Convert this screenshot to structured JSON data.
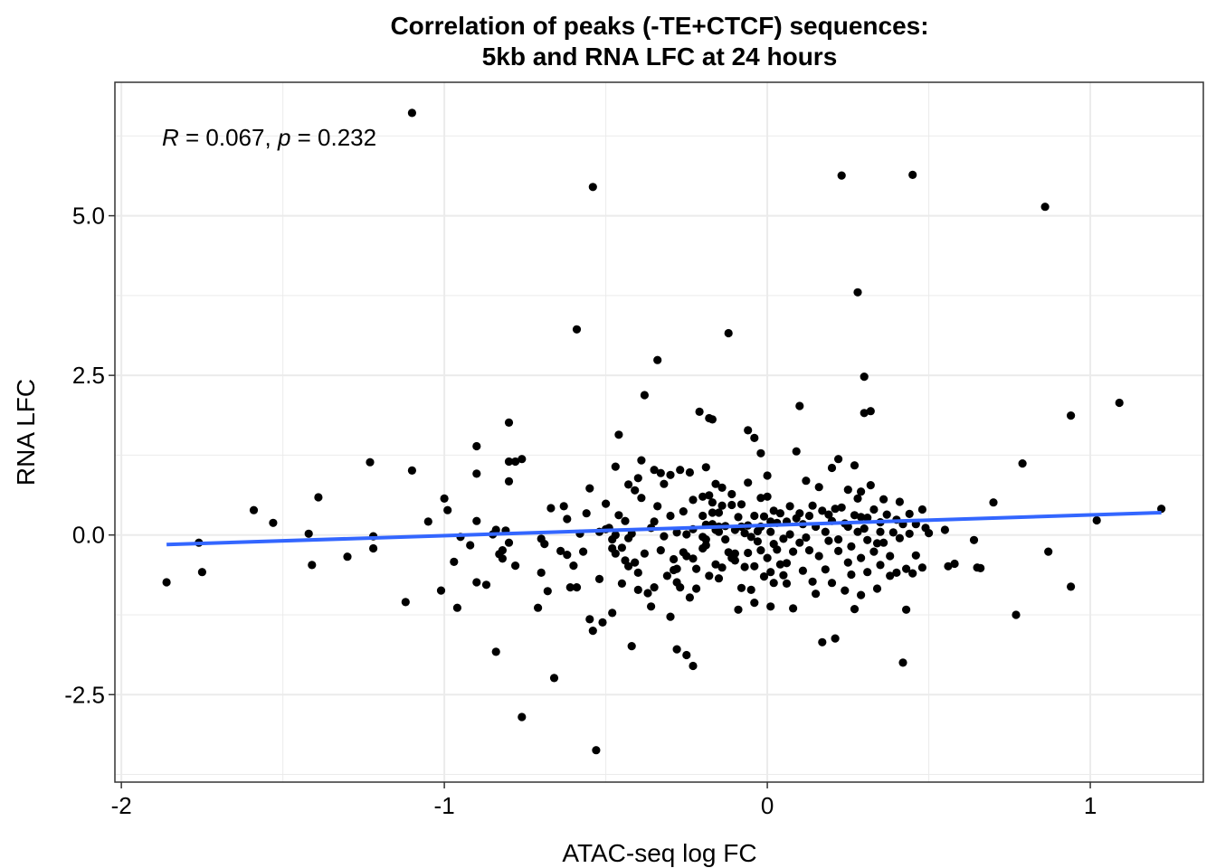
{
  "chart_data": {
    "type": "scatter",
    "title_lines": [
      "Correlation of peaks (-TE+CTCF) sequences:",
      "5kb and RNA LFC at 24 hours"
    ],
    "xlabel": "ATAC-seq log FC",
    "ylabel": "RNA LFC",
    "xlim": [
      -2.02,
      1.35
    ],
    "ylim": [
      -3.87,
      7.09
    ],
    "x_ticks": [
      -2,
      -1,
      0,
      1
    ],
    "x_tick_labels": [
      "-2",
      "-1",
      "0",
      "1"
    ],
    "y_ticks": [
      -2.5,
      0,
      2.5,
      5
    ],
    "y_tick_labels": [
      "-2.5",
      "0.0",
      "2.5",
      "5.0"
    ],
    "grid": true,
    "legend": "none",
    "colors": {
      "points": "#000000",
      "fit_line": "#3366FF",
      "grid": "#EBEBEB",
      "border": "#333333"
    },
    "annotation": {
      "r_label": "R",
      "r_value": " = 0.067, ",
      "p_label": "p",
      "p_value": " = 0.232"
    },
    "fit_line": {
      "x": [
        -1.86,
        1.22
      ],
      "y": [
        -0.15,
        0.35
      ]
    },
    "points": [
      [
        -1.86,
        -0.74
      ],
      [
        -1.76,
        -0.12
      ],
      [
        -1.75,
        -0.58
      ],
      [
        -1.59,
        0.39
      ],
      [
        -1.53,
        0.19
      ],
      [
        -1.42,
        0.02
      ],
      [
        -1.41,
        -0.47
      ],
      [
        -1.39,
        0.59
      ],
      [
        -1.3,
        -0.34
      ],
      [
        -1.23,
        1.14
      ],
      [
        -1.22,
        -0.02
      ],
      [
        -1.22,
        -0.21
      ],
      [
        -1.12,
        -1.05
      ],
      [
        -1.1,
        1.01
      ],
      [
        -1.1,
        6.61
      ],
      [
        -1.05,
        0.21
      ],
      [
        -1.01,
        -0.87
      ],
      [
        -1.0,
        0.57
      ],
      [
        -0.99,
        0.39
      ],
      [
        -0.97,
        -0.42
      ],
      [
        -0.96,
        -1.14
      ],
      [
        -0.95,
        -0.03
      ],
      [
        -0.92,
        -0.16
      ],
      [
        -0.9,
        0.96
      ],
      [
        -0.9,
        1.39
      ],
      [
        -0.9,
        -0.74
      ],
      [
        -0.9,
        0.22
      ],
      [
        -0.87,
        -0.78
      ],
      [
        -0.85,
        0.01
      ],
      [
        -0.84,
        -1.83
      ],
      [
        -0.84,
        0.08
      ],
      [
        -0.83,
        -0.3
      ],
      [
        -0.82,
        -0.24
      ],
      [
        -0.82,
        -0.37
      ],
      [
        -0.81,
        0.07
      ],
      [
        -0.8,
        -0.12
      ],
      [
        -0.8,
        1.76
      ],
      [
        -0.8,
        1.15
      ],
      [
        -0.8,
        0.84
      ],
      [
        -0.78,
        1.15
      ],
      [
        -0.78,
        -0.48
      ],
      [
        -0.76,
        1.19
      ],
      [
        -0.76,
        -2.85
      ],
      [
        -0.71,
        -1.14
      ],
      [
        -0.7,
        -0.06
      ],
      [
        -0.7,
        -0.59
      ],
      [
        -0.69,
        -0.14
      ],
      [
        -0.68,
        -0.88
      ],
      [
        -0.67,
        0.42
      ],
      [
        -0.66,
        -2.24
      ],
      [
        -0.64,
        -0.25
      ],
      [
        -0.63,
        0.45
      ],
      [
        -0.62,
        0.25
      ],
      [
        -0.62,
        -0.31
      ],
      [
        -0.61,
        -0.82
      ],
      [
        -0.6,
        -0.48
      ],
      [
        -0.59,
        -0.82
      ],
      [
        -0.59,
        3.22
      ],
      [
        -0.58,
        0.02
      ],
      [
        -0.57,
        -0.26
      ],
      [
        -0.56,
        0.34
      ],
      [
        -0.55,
        0.73
      ],
      [
        -0.55,
        -1.32
      ],
      [
        -0.54,
        -1.5
      ],
      [
        -0.54,
        5.45
      ],
      [
        -0.53,
        -3.37
      ],
      [
        -0.52,
        0.05
      ],
      [
        -0.52,
        -0.69
      ],
      [
        -0.51,
        -1.37
      ],
      [
        -0.5,
        0.49
      ],
      [
        -0.5,
        0.09
      ],
      [
        -0.49,
        0.11
      ],
      [
        -0.48,
        -0.07
      ],
      [
        -0.48,
        -0.21
      ],
      [
        -0.48,
        -1.22
      ],
      [
        -0.47,
        1.07
      ],
      [
        -0.47,
        0.0
      ],
      [
        -0.47,
        -0.29
      ],
      [
        -0.46,
        1.57
      ],
      [
        -0.46,
        0.31
      ],
      [
        -0.45,
        -0.76
      ],
      [
        -0.45,
        -0.2
      ],
      [
        -0.44,
        0.22
      ],
      [
        -0.44,
        -0.4
      ],
      [
        -0.43,
        -0.49
      ],
      [
        -0.43,
        0.79
      ],
      [
        -0.43,
        -0.05
      ],
      [
        -0.42,
        -1.74
      ],
      [
        -0.42,
        0.02
      ],
      [
        -0.41,
        -0.43
      ],
      [
        -0.41,
        0.7
      ],
      [
        -0.4,
        -0.59
      ],
      [
        -0.4,
        0.89
      ],
      [
        -0.4,
        -0.86
      ],
      [
        -0.39,
        1.17
      ],
      [
        -0.39,
        0.58
      ],
      [
        -0.38,
        2.19
      ],
      [
        -0.38,
        -0.29
      ],
      [
        -0.37,
        -0.91
      ],
      [
        -0.36,
        -1.12
      ],
      [
        -0.36,
        0.11
      ],
      [
        -0.35,
        -0.82
      ],
      [
        -0.35,
        1.02
      ],
      [
        -0.35,
        0.21
      ],
      [
        -0.34,
        2.74
      ],
      [
        -0.34,
        0.45
      ],
      [
        -0.33,
        -0.24
      ],
      [
        -0.33,
        0.97
      ],
      [
        -0.32,
        0.8
      ],
      [
        -0.32,
        -0.02
      ],
      [
        -0.31,
        -0.64
      ],
      [
        -0.3,
        0.3
      ],
      [
        -0.3,
        -1.28
      ],
      [
        -0.3,
        0.94
      ],
      [
        -0.29,
        -0.38
      ],
      [
        -0.29,
        -0.55
      ],
      [
        -0.28,
        -1.79
      ],
      [
        -0.28,
        -0.74
      ],
      [
        -0.28,
        0.04
      ],
      [
        -0.28,
        -0.53
      ],
      [
        -0.27,
        -0.82
      ],
      [
        -0.27,
        1.02
      ],
      [
        -0.26,
        0.37
      ],
      [
        -0.26,
        -0.27
      ],
      [
        -0.25,
        -1.88
      ],
      [
        -0.25,
        -0.33
      ],
      [
        -0.25,
        0.01
      ],
      [
        -0.24,
        -0.98
      ],
      [
        -0.24,
        0.98
      ],
      [
        -0.23,
        -2.05
      ],
      [
        -0.23,
        -0.37
      ],
      [
        -0.23,
        0.55
      ],
      [
        -0.23,
        0.09
      ],
      [
        -0.22,
        -0.84
      ],
      [
        -0.22,
        -0.53
      ],
      [
        -0.21,
        1.93
      ],
      [
        -0.2,
        -0.21
      ],
      [
        -0.2,
        0.3
      ],
      [
        -0.2,
        0.6
      ],
      [
        -0.2,
        -0.03
      ],
      [
        -0.19,
        -0.07
      ],
      [
        -0.19,
        1.06
      ],
      [
        -0.19,
        0.16
      ],
      [
        -0.19,
        -0.16
      ],
      [
        -0.18,
        1.83
      ],
      [
        -0.18,
        0.62
      ],
      [
        -0.18,
        -0.64
      ],
      [
        -0.17,
        0.17
      ],
      [
        -0.17,
        0.51
      ],
      [
        -0.17,
        1.81
      ],
      [
        -0.17,
        0.35
      ],
      [
        -0.16,
        -0.46
      ],
      [
        -0.16,
        0.8
      ],
      [
        -0.16,
        0.08
      ],
      [
        -0.15,
        0.35
      ],
      [
        -0.15,
        -0.68
      ],
      [
        -0.15,
        0.13
      ],
      [
        -0.15,
        0.05
      ],
      [
        -0.14,
        0.46
      ],
      [
        -0.14,
        -0.51
      ],
      [
        -0.14,
        0.74
      ],
      [
        -0.13,
        -0.07
      ],
      [
        -0.13,
        0.14
      ],
      [
        -0.12,
        3.16
      ],
      [
        -0.12,
        -0.27
      ],
      [
        -0.11,
        0.64
      ],
      [
        -0.11,
        0.47
      ],
      [
        -0.11,
        -0.36
      ],
      [
        -0.1,
        0.08
      ],
      [
        -0.1,
        -0.29
      ],
      [
        -0.1,
        -0.4
      ],
      [
        -0.09,
        -1.17
      ],
      [
        -0.09,
        0.28
      ],
      [
        -0.08,
        -0.83
      ],
      [
        -0.08,
        0.13
      ],
      [
        -0.08,
        0.48
      ],
      [
        -0.07,
        0.03
      ],
      [
        -0.07,
        -0.5
      ],
      [
        -0.06,
        1.64
      ],
      [
        -0.06,
        0.15
      ],
      [
        -0.06,
        -0.28
      ],
      [
        -0.06,
        0.82
      ],
      [
        -0.05,
        -0.86
      ],
      [
        -0.05,
        -0.03
      ],
      [
        -0.04,
        0.3
      ],
      [
        -0.04,
        1.52
      ],
      [
        -0.04,
        -1.06
      ],
      [
        -0.04,
        -0.49
      ],
      [
        -0.03,
        0.06
      ],
      [
        -0.03,
        -0.1
      ],
      [
        -0.02,
        1.28
      ],
      [
        -0.02,
        0.58
      ],
      [
        -0.02,
        -0.24
      ],
      [
        -0.02,
        0.13
      ],
      [
        -0.01,
        -0.65
      ],
      [
        -0.01,
        0.29
      ],
      [
        0.0,
        0.6
      ],
      [
        0.0,
        0.93
      ],
      [
        0.0,
        -0.36
      ],
      [
        0.01,
        -1.12
      ],
      [
        0.01,
        0.05
      ],
      [
        0.01,
        0.21
      ],
      [
        0.01,
        -0.58
      ],
      [
        0.02,
        0.38
      ],
      [
        0.02,
        -0.14
      ],
      [
        0.02,
        -0.75
      ],
      [
        0.03,
        -0.23
      ],
      [
        0.03,
        0.19
      ],
      [
        0.04,
        -0.46
      ],
      [
        0.04,
        0.34
      ],
      [
        0.05,
        -0.63
      ],
      [
        0.05,
        -0.06
      ],
      [
        0.06,
        -0.44
      ],
      [
        0.06,
        0.21
      ],
      [
        0.06,
        -0.76
      ],
      [
        0.07,
        0.45
      ],
      [
        0.07,
        0.01
      ],
      [
        0.08,
        -0.26
      ],
      [
        0.08,
        -1.15
      ],
      [
        0.09,
        0.26
      ],
      [
        0.09,
        1.31
      ],
      [
        0.1,
        2.02
      ],
      [
        0.1,
        -0.12
      ],
      [
        0.1,
        0.34
      ],
      [
        0.11,
        -0.56
      ],
      [
        0.11,
        0.17
      ],
      [
        0.12,
        -0.04
      ],
      [
        0.12,
        0.85
      ],
      [
        0.13,
        -0.24
      ],
      [
        0.13,
        0.3
      ],
      [
        0.14,
        -0.73
      ],
      [
        0.14,
        0.46
      ],
      [
        0.15,
        -0.92
      ],
      [
        0.15,
        0.13
      ],
      [
        0.16,
        0.75
      ],
      [
        0.16,
        -0.33
      ],
      [
        0.17,
        0.38
      ],
      [
        0.17,
        -1.68
      ],
      [
        0.18,
        0.05
      ],
      [
        0.18,
        -0.54
      ],
      [
        0.19,
        0.32
      ],
      [
        0.19,
        -0.09
      ],
      [
        0.2,
        1.05
      ],
      [
        0.2,
        0.22
      ],
      [
        0.2,
        -0.75
      ],
      [
        0.21,
        0.41
      ],
      [
        0.21,
        -1.62
      ],
      [
        0.22,
        -0.25
      ],
      [
        0.22,
        1.19
      ],
      [
        0.22,
        -0.07
      ],
      [
        0.23,
        0.43
      ],
      [
        0.23,
        5.63
      ],
      [
        0.24,
        0.18
      ],
      [
        0.24,
        -0.87
      ],
      [
        0.25,
        -0.43
      ],
      [
        0.25,
        0.13
      ],
      [
        0.25,
        0.71
      ],
      [
        0.26,
        -0.62
      ],
      [
        0.26,
        -0.18
      ],
      [
        0.27,
        0.31
      ],
      [
        0.27,
        1.09
      ],
      [
        0.27,
        -1.16
      ],
      [
        0.28,
        0.57
      ],
      [
        0.28,
        3.8
      ],
      [
        0.28,
        0.05
      ],
      [
        0.29,
        0.28
      ],
      [
        0.29,
        -0.94
      ],
      [
        0.29,
        -0.36
      ],
      [
        0.29,
        0.68
      ],
      [
        0.3,
        0.1
      ],
      [
        0.3,
        2.48
      ],
      [
        0.3,
        1.91
      ],
      [
        0.31,
        -0.08
      ],
      [
        0.31,
        -0.58
      ],
      [
        0.31,
        0.27
      ],
      [
        0.32,
        1.94
      ],
      [
        0.32,
        0.78
      ],
      [
        0.33,
        -0.26
      ],
      [
        0.33,
        0.4
      ],
      [
        0.34,
        -0.13
      ],
      [
        0.34,
        -0.84
      ],
      [
        0.35,
        0.05
      ],
      [
        0.35,
        -0.47
      ],
      [
        0.35,
        0.2
      ],
      [
        0.36,
        0.56
      ],
      [
        0.36,
        -0.12
      ],
      [
        0.37,
        0.32
      ],
      [
        0.38,
        -0.33
      ],
      [
        0.38,
        -0.64
      ],
      [
        0.39,
        0.04
      ],
      [
        0.4,
        0.24
      ],
      [
        0.4,
        -0.59
      ],
      [
        0.41,
        0.52
      ],
      [
        0.41,
        -0.05
      ],
      [
        0.42,
        -2.0
      ],
      [
        0.42,
        0.17
      ],
      [
        0.43,
        -1.17
      ],
      [
        0.43,
        -0.53
      ],
      [
        0.44,
        0.33
      ],
      [
        0.44,
        0.02
      ],
      [
        0.45,
        5.64
      ],
      [
        0.45,
        -0.6
      ],
      [
        0.46,
        0.17
      ],
      [
        0.46,
        -0.32
      ],
      [
        0.48,
        0.4
      ],
      [
        0.48,
        -0.51
      ],
      [
        0.49,
        0.11
      ],
      [
        0.5,
        0.03
      ],
      [
        0.55,
        0.08
      ],
      [
        0.56,
        -0.49
      ],
      [
        0.58,
        -0.45
      ],
      [
        0.64,
        -0.08
      ],
      [
        0.65,
        -0.51
      ],
      [
        0.66,
        -0.52
      ],
      [
        0.7,
        0.51
      ],
      [
        0.77,
        -1.25
      ],
      [
        0.79,
        1.12
      ],
      [
        0.86,
        5.14
      ],
      [
        0.87,
        -0.26
      ],
      [
        0.94,
        -0.81
      ],
      [
        0.94,
        1.87
      ],
      [
        1.02,
        0.23
      ],
      [
        1.09,
        2.07
      ],
      [
        1.22,
        0.41
      ]
    ]
  }
}
